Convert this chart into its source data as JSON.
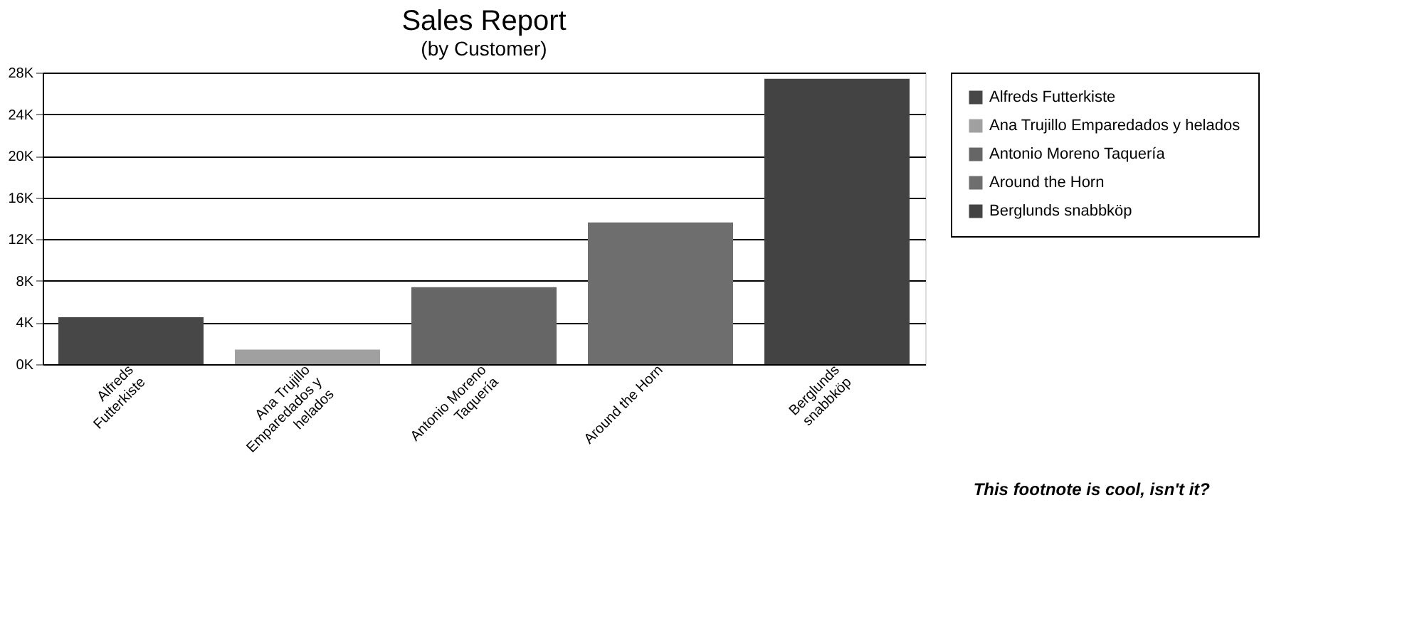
{
  "chart_data": {
    "type": "bar",
    "title": "Sales Report",
    "subtitle": "(by Customer)",
    "categories": [
      "Alfreds Futterkiste",
      "Ana Trujillo Emparedados y helados",
      "Antonio Moreno Taquería",
      "Around the Horn",
      "Berglunds snabbköp"
    ],
    "series": [
      {
        "name": "Alfreds Futterkiste",
        "color": "#474747",
        "values": [
          4500,
          null,
          null,
          null,
          null
        ]
      },
      {
        "name": "Ana Trujillo Emparedados y helados",
        "color": "#a0a0a0",
        "values": [
          null,
          1400,
          null,
          null,
          null
        ]
      },
      {
        "name": "Antonio Moreno Taquería",
        "color": "#666666",
        "values": [
          null,
          null,
          7400,
          null,
          null
        ]
      },
      {
        "name": "Around the Horn",
        "color": "#6e6e6e",
        "values": [
          null,
          null,
          null,
          13600,
          null
        ]
      },
      {
        "name": "Berglunds snabbköp",
        "color": "#434343",
        "values": [
          null,
          null,
          null,
          null,
          27400
        ]
      }
    ],
    "ylim": [
      0,
      28000
    ],
    "yticks": [
      {
        "value": 0,
        "label": "0K"
      },
      {
        "value": 4000,
        "label": "4K"
      },
      {
        "value": 8000,
        "label": "8K"
      },
      {
        "value": 12000,
        "label": "12K"
      },
      {
        "value": 16000,
        "label": "16K"
      },
      {
        "value": 20000,
        "label": "20K"
      },
      {
        "value": 24000,
        "label": "24K"
      },
      {
        "value": 28000,
        "label": "28K"
      }
    ],
    "grid": "y",
    "legend": "right",
    "annotations": [
      "This footnote is cool, isn't it?"
    ]
  }
}
